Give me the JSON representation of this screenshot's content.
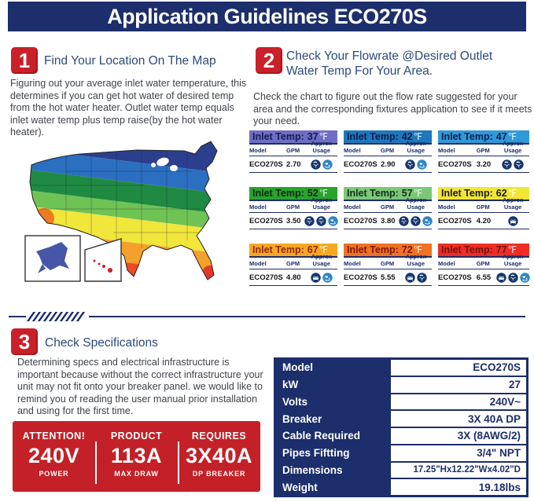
{
  "colors": {
    "navy": "#1c2e6b",
    "red": "#c9202a",
    "heading_blue": "#2c4a7c"
  },
  "header": {
    "title": "Application Guidelines ECO270S"
  },
  "step1": {
    "number": "1",
    "title": "Find Your Location On The Map",
    "body": "Figuring out your average inlet water temperature, this determines if you can get hot water of desired temp from the hot water heater. Outlet water temp equals inlet water temp plus temp raise(by the hot water heater)."
  },
  "step2": {
    "number": "2",
    "title": "Check Your Flowrate @Desired Outlet Water Temp For Your Area.",
    "body": "Check the chart to figure out the flow rate suggested for your area and the corresponding fixtures application to see if it meets your need."
  },
  "step3": {
    "number": "3",
    "title": "Check Specifications",
    "body": "Determining specs and electrical infrastructure is important because without the correct infrastructure your unit may not fit onto your breaker panel. we would like to remind you of reading the user manual prior installation and using for the first time."
  },
  "flow_tables": {
    "header_prefix": "Inlet Temp:",
    "degree_symbol": "℉",
    "columns": [
      "Model",
      "GPM",
      "Approx Usage"
    ],
    "items": [
      {
        "temp": "37",
        "model": "ECO270S",
        "gpm": "2.70",
        "bg": "#6e6ec2",
        "fg": "#131c55",
        "icons": [
          "shower-icon",
          "faucet-icon"
        ]
      },
      {
        "temp": "42",
        "model": "ECO270S",
        "gpm": "2.90",
        "bg": "#1e78bc",
        "fg": "#0d1e4e",
        "icons": [
          "shower-icon",
          "faucet-icon"
        ]
      },
      {
        "temp": "47",
        "model": "ECO270S",
        "gpm": "3.20",
        "bg": "#2f9ad7",
        "fg": "#0d1e4e",
        "icons": [
          "shower-icon",
          "shower-icon"
        ]
      },
      {
        "temp": "52",
        "model": "ECO270S",
        "gpm": "3.50",
        "bg": "#2aa32c",
        "fg": "#0e2a14",
        "icons": [
          "shower-icon",
          "shower-icon",
          "faucet-icon"
        ]
      },
      {
        "temp": "57",
        "model": "ECO270S",
        "gpm": "3.80",
        "bg": "#7cc878",
        "fg": "#13301a",
        "icons": [
          "shower-icon",
          "shower-icon",
          "faucet-icon"
        ]
      },
      {
        "temp": "62",
        "model": "ECO270S",
        "gpm": "4.20",
        "bg": "#f1e637",
        "fg": "#1c1c1c",
        "icons": [
          "bathtub-icon"
        ]
      },
      {
        "temp": "67",
        "model": "ECO270S",
        "gpm": "4.80",
        "bg": "#f7a823",
        "fg": "#8d2a12",
        "icons": [
          "bathtub-icon",
          "faucet-icon"
        ]
      },
      {
        "temp": "72",
        "model": "ECO270S",
        "gpm": "5.55",
        "bg": "#ef7123",
        "fg": "#7e180e",
        "icons": [
          "bathtub-icon",
          "shower-icon"
        ]
      },
      {
        "temp": "77",
        "model": "ECO270S",
        "gpm": "6.55",
        "bg": "#ee2d24",
        "fg": "#6e1511",
        "icons": [
          "bathtub-icon",
          "shower-icon",
          "faucet-icon"
        ]
      }
    ]
  },
  "attention_box": {
    "columns": [
      {
        "top": "ATTENTION!",
        "big": "240V",
        "bottom": "POWER"
      },
      {
        "top": "PRODUCT",
        "big": "113A",
        "bottom": "MAX DRAW"
      },
      {
        "top": "REQUIRES",
        "big": "3X40A",
        "bottom": "DP BREAKER"
      }
    ]
  },
  "spec_table": {
    "rows": [
      {
        "label": "Model",
        "value": "ECO270S"
      },
      {
        "label": "kW",
        "value": "27"
      },
      {
        "label": "Volts",
        "value": "240V~"
      },
      {
        "label": "Breaker",
        "value": "3X 40A DP"
      },
      {
        "label": "Cable Required",
        "value": "3X (8AWG/2)"
      },
      {
        "label": "Pipes Fiftting",
        "value": "3/4\" NPT"
      },
      {
        "label": "Dimensions",
        "value": "17.25\"Hx12.22\"Wx4.02\"D"
      },
      {
        "label": "Weight",
        "value": "19.18lbs"
      }
    ]
  }
}
